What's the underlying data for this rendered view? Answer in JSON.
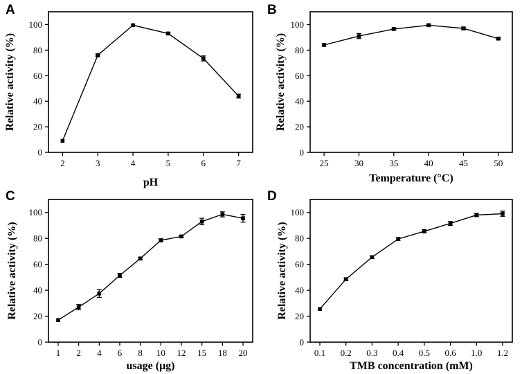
{
  "chart_data": [
    {
      "type": "line",
      "panel": "A",
      "xlabel": "pH",
      "ylabel": "Relative activity (%)",
      "categories": [
        "2",
        "3",
        "4",
        "5",
        "6",
        "7"
      ],
      "x": [
        2,
        3,
        4,
        5,
        6,
        7
      ],
      "values": [
        9,
        76,
        99.5,
        93,
        73.5,
        44
      ],
      "errors": [
        0.5,
        0.8,
        0.6,
        1,
        2,
        1.5
      ],
      "xlim": [
        1.6,
        7.4
      ],
      "ylim": [
        0,
        110
      ],
      "yticks": [
        "0",
        "20",
        "40",
        "60",
        "80",
        "100"
      ],
      "ytick_values": [
        0,
        20,
        40,
        60,
        80,
        100
      ]
    },
    {
      "type": "line",
      "panel": "B",
      "xlabel": "Temperature (°C)",
      "ylabel": "Relative activity (%)",
      "categories": [
        "25",
        "30",
        "35",
        "40",
        "45",
        "50"
      ],
      "x": [
        25,
        30,
        35,
        40,
        45,
        50
      ],
      "values": [
        84,
        91,
        96.5,
        99.5,
        97,
        89
      ],
      "errors": [
        0.8,
        2,
        0.8,
        0.8,
        1,
        0.8
      ],
      "xlim": [
        23,
        52
      ],
      "ylim": [
        0,
        110
      ],
      "yticks": [
        "0",
        "20",
        "40",
        "60",
        "80",
        "100"
      ],
      "ytick_values": [
        0,
        20,
        40,
        60,
        80,
        100
      ]
    },
    {
      "type": "line",
      "panel": "C",
      "xlabel": "usage (μg)",
      "ylabel": "Relative activity (%)",
      "categories": [
        "1",
        "2",
        "4",
        "6",
        "8",
        "10",
        "12",
        "15",
        "18",
        "20"
      ],
      "values": [
        17,
        27,
        37.5,
        51.5,
        64.5,
        78.5,
        81.5,
        93,
        98.5,
        95.5
      ],
      "errors": [
        0.6,
        2,
        3,
        1.5,
        1,
        1.2,
        0.8,
        2.5,
        2,
        3
      ],
      "ylim": [
        0,
        110
      ],
      "yticks": [
        "0",
        "20",
        "40",
        "60",
        "80",
        "100"
      ],
      "ytick_values": [
        0,
        20,
        40,
        60,
        80,
        100
      ]
    },
    {
      "type": "line",
      "panel": "D",
      "xlabel": "TMB concentration (mM)",
      "ylabel": "Relative activity (%)",
      "categories": [
        "0.1",
        "0.2",
        "0.3",
        "0.4",
        "0.5",
        "0.6",
        "1.0",
        "1.2"
      ],
      "values": [
        25.5,
        48.5,
        65.5,
        79.5,
        85.5,
        91.5,
        98,
        99
      ],
      "errors": [
        0.5,
        0.8,
        1,
        1,
        1.2,
        1.5,
        1.2,
        2
      ],
      "ylim": [
        0,
        110
      ],
      "yticks": [
        "0",
        "20",
        "40",
        "60",
        "80",
        "100"
      ],
      "ytick_values": [
        0,
        20,
        40,
        60,
        80,
        100
      ]
    }
  ]
}
